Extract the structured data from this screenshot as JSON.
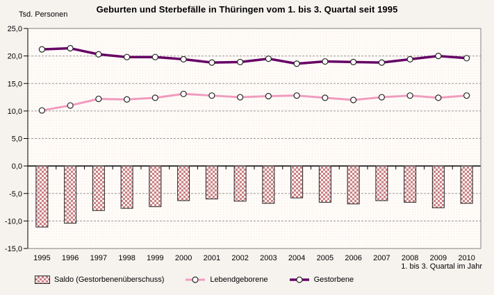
{
  "title": "Geburten und Sterbefälle in Thüringen vom 1. bis 3. Quartal seit 1995",
  "y_axis_unit_label": "Tsd. Personen",
  "x_axis_caption": "1. bis 3. Quartal im Jahr",
  "colors": {
    "canvas_background": "#F6F3EF",
    "plot_background": "#FEFBF8",
    "plot_texture_dot": "#F2E7E0",
    "frame_border": "#808080",
    "gridline": "#999999",
    "axis_line": "#000000",
    "bar_pattern_foreground": "#C8808A",
    "bar_pattern_background": "#FBF3EA",
    "bar_border": "#262626",
    "line_lebendgeborene": "#F09BBE",
    "line_gestorbene": "#660066",
    "marker_fill": "#FFFFFF",
    "marker_stroke": "#262626"
  },
  "chart_data": {
    "type": "bar+line combo",
    "title": "Geburten und Sterbefälle in Thüringen vom 1. bis 3. Quartal seit 1995",
    "xlabel": "1. bis 3. Quartal im Jahr",
    "ylabel": "Tsd. Personen",
    "ylim": [
      -15,
      25
    ],
    "ytick_step": 5,
    "ytick_labels": [
      "25,0",
      "20,0",
      "15,0",
      "10,0",
      "5,0",
      "0,0",
      "-5,0",
      "-10,0",
      "-15,0"
    ],
    "grid": "horizontal dashed, solid black zero line",
    "legend_position": "bottom",
    "categories": [
      "1995",
      "1996",
      "1997",
      "1998",
      "1999",
      "2000",
      "2001",
      "2002",
      "2003",
      "2004",
      "2005",
      "2006",
      "2007",
      "2008",
      "2009",
      "2010"
    ],
    "series": [
      {
        "name": "Saldo (Gestorbenenüberschuss)",
        "type": "bar",
        "fill": "checker-pattern",
        "color": "#C8808A",
        "values": [
          -11.1,
          -10.4,
          -8.1,
          -7.7,
          -7.4,
          -6.3,
          -6.0,
          -6.4,
          -6.8,
          -5.8,
          -6.6,
          -6.9,
          -6.3,
          -6.6,
          -7.6,
          -6.8
        ]
      },
      {
        "name": "Lebendgeborene",
        "type": "line",
        "color": "#F09BBE",
        "marker": "circle-white",
        "values": [
          10.1,
          11.0,
          12.2,
          12.1,
          12.4,
          13.1,
          12.8,
          12.5,
          12.7,
          12.8,
          12.4,
          12.0,
          12.5,
          12.8,
          12.4,
          12.8
        ]
      },
      {
        "name": "Gestorbene",
        "type": "line",
        "color": "#660066",
        "marker": "circle-white",
        "values": [
          21.2,
          21.4,
          20.3,
          19.8,
          19.8,
          19.4,
          18.8,
          18.9,
          19.5,
          18.6,
          19.0,
          18.9,
          18.8,
          19.4,
          20.0,
          19.6
        ]
      }
    ]
  },
  "legend": {
    "items": [
      {
        "label": "Saldo (Gestorbenenüberschuss)",
        "swatch": "checker-rect"
      },
      {
        "label": "Lebendgeborene",
        "swatch": "pink-line-circle-marker"
      },
      {
        "label": "Gestorbene",
        "swatch": "purple-line-circle-marker"
      }
    ]
  }
}
